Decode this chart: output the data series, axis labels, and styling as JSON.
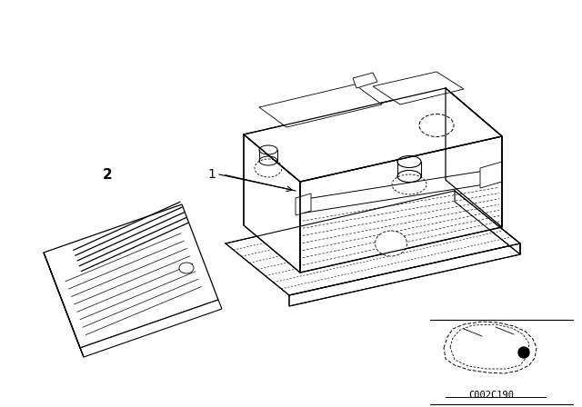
{
  "bg_color": "#ffffff",
  "line_color": "#000000",
  "fig_width": 6.4,
  "fig_height": 4.48,
  "dpi": 100,
  "label1": "1",
  "label2": "2",
  "code_text": "C002C190"
}
